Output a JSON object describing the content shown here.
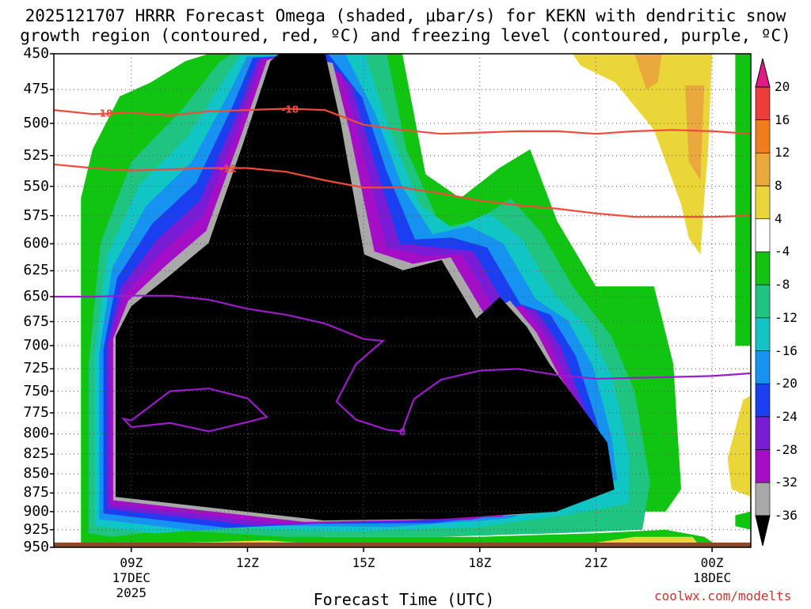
{
  "title": {
    "line1": "2025121707 HRRR Forecast Omega (shaded, μbar/s) for KEKN with dendritic snow",
    "line2": "growth region (contoured, red, ºC) and freezing level (contoured, purple, ºC)"
  },
  "credit": "coolwx.com/modelts",
  "chart_data": {
    "type": "heatmap",
    "title": "2025121707 HRRR Forecast Omega (shaded, μbar/s) for KEKN with dendritic snow growth region (contoured, red, ºC) and freezing level (contoured, purple, ºC)",
    "xlabel": "Forecast Time (UTC)",
    "ylabel": "",
    "x_range_hours": [
      7,
      25
    ],
    "y_range_hpa": [
      450,
      950
    ],
    "y_scale": "log",
    "y_ticks": [
      450,
      475,
      500,
      525,
      550,
      575,
      600,
      625,
      650,
      675,
      700,
      725,
      750,
      775,
      800,
      825,
      850,
      875,
      900,
      925,
      950
    ],
    "x_ticks": [
      {
        "hour": 9,
        "label": "09Z",
        "date": "17DEC",
        "year": "2025"
      },
      {
        "hour": 12,
        "label": "12Z"
      },
      {
        "hour": 15,
        "label": "15Z"
      },
      {
        "hour": 18,
        "label": "18Z"
      },
      {
        "hour": 21,
        "label": "21Z"
      },
      {
        "hour": 24,
        "label": "00Z",
        "date": "18DEC"
      }
    ],
    "grid": true,
    "colorbar": {
      "labels": [
        20,
        16,
        12,
        8,
        4,
        -4,
        -8,
        -12,
        -16,
        -20,
        -24,
        -28,
        -32,
        -36
      ],
      "bins": [
        {
          "lo": 16,
          "hi": 20,
          "color": "#ef3b3b"
        },
        {
          "lo": 12,
          "hi": 16,
          "color": "#ef7d1e"
        },
        {
          "lo": 8,
          "hi": 12,
          "color": "#e9a93c"
        },
        {
          "lo": 4,
          "hi": 8,
          "color": "#ebd639"
        },
        {
          "lo": -4,
          "hi": 4,
          "color": "#ffffff"
        },
        {
          "lo": -8,
          "hi": -4,
          "color": "#11c411"
        },
        {
          "lo": -12,
          "hi": -8,
          "color": "#1ec480"
        },
        {
          "lo": -16,
          "hi": -12,
          "color": "#11c5c5"
        },
        {
          "lo": -20,
          "hi": -16,
          "color": "#1692f0"
        },
        {
          "lo": -24,
          "hi": -20,
          "color": "#1b3ef0"
        },
        {
          "lo": -28,
          "hi": -24,
          "color": "#7a1cd6"
        },
        {
          "lo": -32,
          "hi": -28,
          "color": "#a40ec6"
        },
        {
          "lo": -36,
          "hi": -32,
          "color": "#a9a9a9"
        }
      ],
      "top_arrow_color": "#e21a86",
      "bottom_arrow_color": "#000000"
    },
    "series": [
      {
        "label": "-18",
        "color": "#f04a3a",
        "points": [
          [
            7.0,
            490
          ],
          [
            8.0,
            493
          ],
          [
            9.0,
            492
          ],
          [
            10.0,
            494
          ],
          [
            11.0,
            491
          ],
          [
            12.0,
            490
          ],
          [
            13.0,
            489
          ],
          [
            14.0,
            490
          ],
          [
            15.0,
            501
          ],
          [
            16.0,
            505
          ],
          [
            17.0,
            508
          ],
          [
            18.0,
            507
          ],
          [
            19.0,
            506
          ],
          [
            20.0,
            506
          ],
          [
            21.0,
            508
          ],
          [
            22.0,
            506
          ],
          [
            23.0,
            505
          ],
          [
            24.0,
            506
          ],
          [
            25.0,
            508
          ]
        ]
      },
      {
        "label": "-12",
        "color": "#f04a3a",
        "points": [
          [
            7.0,
            532
          ],
          [
            8.0,
            535
          ],
          [
            9.0,
            537
          ],
          [
            10.0,
            536
          ],
          [
            11.0,
            535
          ],
          [
            12.0,
            535
          ],
          [
            13.0,
            538
          ],
          [
            14.0,
            545
          ],
          [
            15.0,
            551
          ],
          [
            16.0,
            551
          ],
          [
            17.0,
            556
          ],
          [
            18.0,
            562
          ],
          [
            19.0,
            566
          ],
          [
            20.0,
            569
          ],
          [
            21.0,
            573
          ],
          [
            22.0,
            576
          ],
          [
            23.0,
            576
          ],
          [
            24.0,
            576
          ],
          [
            25.0,
            575
          ]
        ]
      },
      {
        "label": "0",
        "color": "#9b1cc8",
        "points": [
          [
            7.0,
            650
          ],
          [
            8.0,
            650
          ],
          [
            9.0,
            649
          ],
          [
            10.0,
            649
          ],
          [
            11.0,
            653
          ],
          [
            12.0,
            662
          ],
          [
            13.0,
            668
          ],
          [
            14.0,
            677
          ],
          [
            15.0,
            693
          ],
          [
            15.5,
            695
          ],
          [
            14.8,
            720
          ],
          [
            14.3,
            762
          ],
          [
            14.8,
            783
          ],
          [
            15.6,
            795
          ],
          [
            16.0,
            797
          ],
          [
            16.1,
            783
          ],
          [
            16.3,
            759
          ],
          [
            17.0,
            737
          ],
          [
            18.0,
            727
          ],
          [
            19.0,
            725
          ],
          [
            20.0,
            732
          ],
          [
            21.0,
            736
          ],
          [
            22.0,
            735
          ],
          [
            23.0,
            734
          ],
          [
            24.0,
            733
          ],
          [
            25.0,
            730
          ]
        ]
      },
      {
        "label": "",
        "color": "#9b1cc8",
        "points": [
          [
            9.0,
            784
          ],
          [
            10.0,
            750
          ],
          [
            11.0,
            747
          ],
          [
            12.0,
            758
          ],
          [
            12.5,
            780
          ],
          [
            12.0,
            786
          ],
          [
            11.0,
            797
          ],
          [
            10.0,
            787
          ],
          [
            9.0,
            792
          ],
          [
            8.8,
            782
          ],
          [
            9.0,
            784
          ]
        ]
      }
    ]
  }
}
